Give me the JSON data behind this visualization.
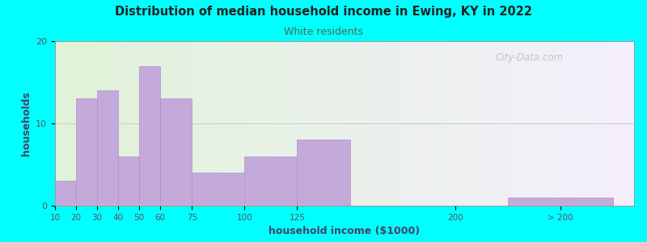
{
  "title": "Distribution of median household income in Ewing, KY in 2022",
  "subtitle": "White residents",
  "xlabel": "household income ($1000)",
  "ylabel": "households",
  "background_outer": "#00FFFF",
  "bar_color": "#c4aada",
  "bar_edge_color": "#b090cc",
  "title_color": "#222222",
  "subtitle_color": "#555555",
  "axis_label_color": "#444466",
  "tick_label_color": "#555566",
  "values": [
    3,
    13,
    14,
    6,
    17,
    13,
    4,
    6,
    8,
    0,
    1
  ],
  "left_edges": [
    10,
    20,
    30,
    40,
    50,
    60,
    75,
    100,
    125,
    200,
    225
  ],
  "widths": [
    10,
    10,
    10,
    10,
    10,
    15,
    25,
    25,
    25,
    25,
    50
  ],
  "tick_positions": [
    10,
    20,
    30,
    40,
    50,
    60,
    75,
    100,
    125,
    200,
    250
  ],
  "tick_labels": [
    "10",
    "20",
    "30",
    "40",
    "50",
    "60",
    "75",
    "100",
    "125",
    "200",
    "> 200"
  ],
  "ylim": [
    0,
    20
  ],
  "yticks": [
    0,
    10,
    20
  ],
  "xlim": [
    10,
    285
  ],
  "watermark": "City-Data.com"
}
